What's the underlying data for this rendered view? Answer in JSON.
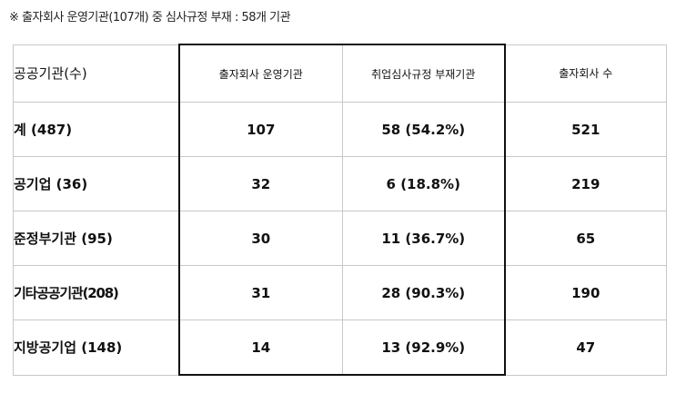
{
  "note": "※ 출자회사 운영기관(107개) 중 심사규정 부재 : 58개 기관",
  "headers": [
    "공공기관(수)",
    "출자회사 운영기관",
    "취업심사규정 부재기관",
    "출자회사 수"
  ],
  "rows": [
    {
      "label": "계 (487)",
      "operators": "107",
      "missing": "58 (54.2%)",
      "subsidiaries": "521"
    },
    {
      "label": "공기업 (36)",
      "operators": "32",
      "missing": "6 (18.8%)",
      "subsidiaries": "219"
    },
    {
      "label": "준정부기관 (95)",
      "operators": "30",
      "missing": "11 (36.7%)",
      "subsidiaries": "65"
    },
    {
      "label": "기타공공기관(208)",
      "operators": "31",
      "missing": "28 (90.3%)",
      "subsidiaries": "190"
    },
    {
      "label": "지방공기업 (148)",
      "operators": "14",
      "missing": "13 (92.9%)",
      "subsidiaries": "47"
    }
  ]
}
